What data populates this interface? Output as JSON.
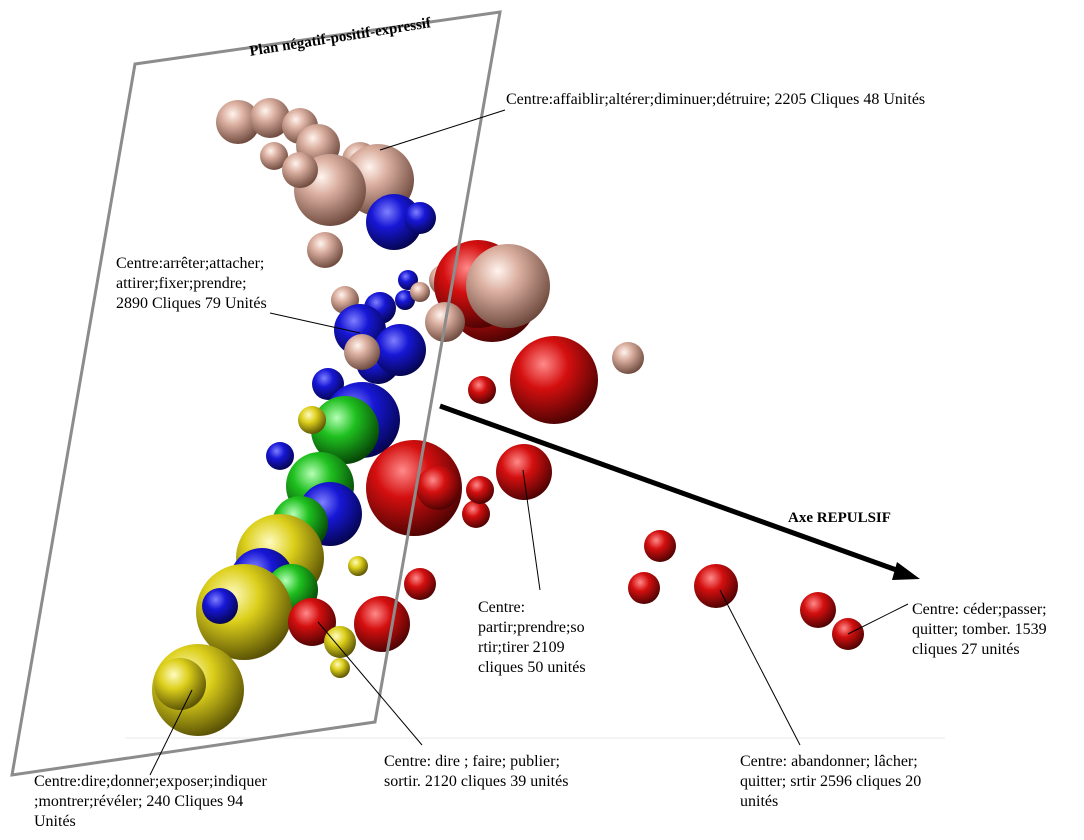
{
  "plane_title": "Plan négatif-positif-expressif",
  "axis_title": "Axe REPULSIF",
  "colors": {
    "pink": "#d9aa9a",
    "blue": "#1a1ad0",
    "red": "#d20e0e",
    "green": "#1fc01f",
    "yellow": "#e2d61c",
    "plane_border": "#8c8c8c",
    "axis": "#000000"
  },
  "labels": [
    {
      "id": "lbl-1",
      "name": "cluster-label-affaiblir",
      "text": "Centre:affaiblir;altérer;diminuer;détruire; 2205 Cliques 48 Unités"
    },
    {
      "id": "lbl-2",
      "name": "cluster-label-arreter",
      "text": "Centre:arrêter;attacher;\nattirer;fixer;prendre;\n2890 Cliques 79 Unités"
    },
    {
      "id": "lbl-3",
      "name": "cluster-label-partir",
      "text": "Centre:\npartir;prendre;so\nrtir;tirer 2109\ncliques 50 unités"
    },
    {
      "id": "lbl-4",
      "name": "cluster-label-ceder",
      "text": "Centre: céder;passer;\nquitter; tomber. 1539\ncliques 27 unités"
    },
    {
      "id": "lbl-5",
      "name": "cluster-label-dire-donner",
      "text": "Centre:dire;donner;exposer;indiquer\n;montrer;révéler; 240 Cliques 94\nUnités"
    },
    {
      "id": "lbl-6",
      "name": "cluster-label-dire-faire",
      "text": "Centre: dire ; faire; publier;\nsortir. 2120 cliques 39 unités"
    },
    {
      "id": "lbl-7",
      "name": "cluster-label-abandonner",
      "text": "Centre: abandonner; lâcher;\nquitter; srtir 2596 cliques 20\nunités"
    }
  ]
}
